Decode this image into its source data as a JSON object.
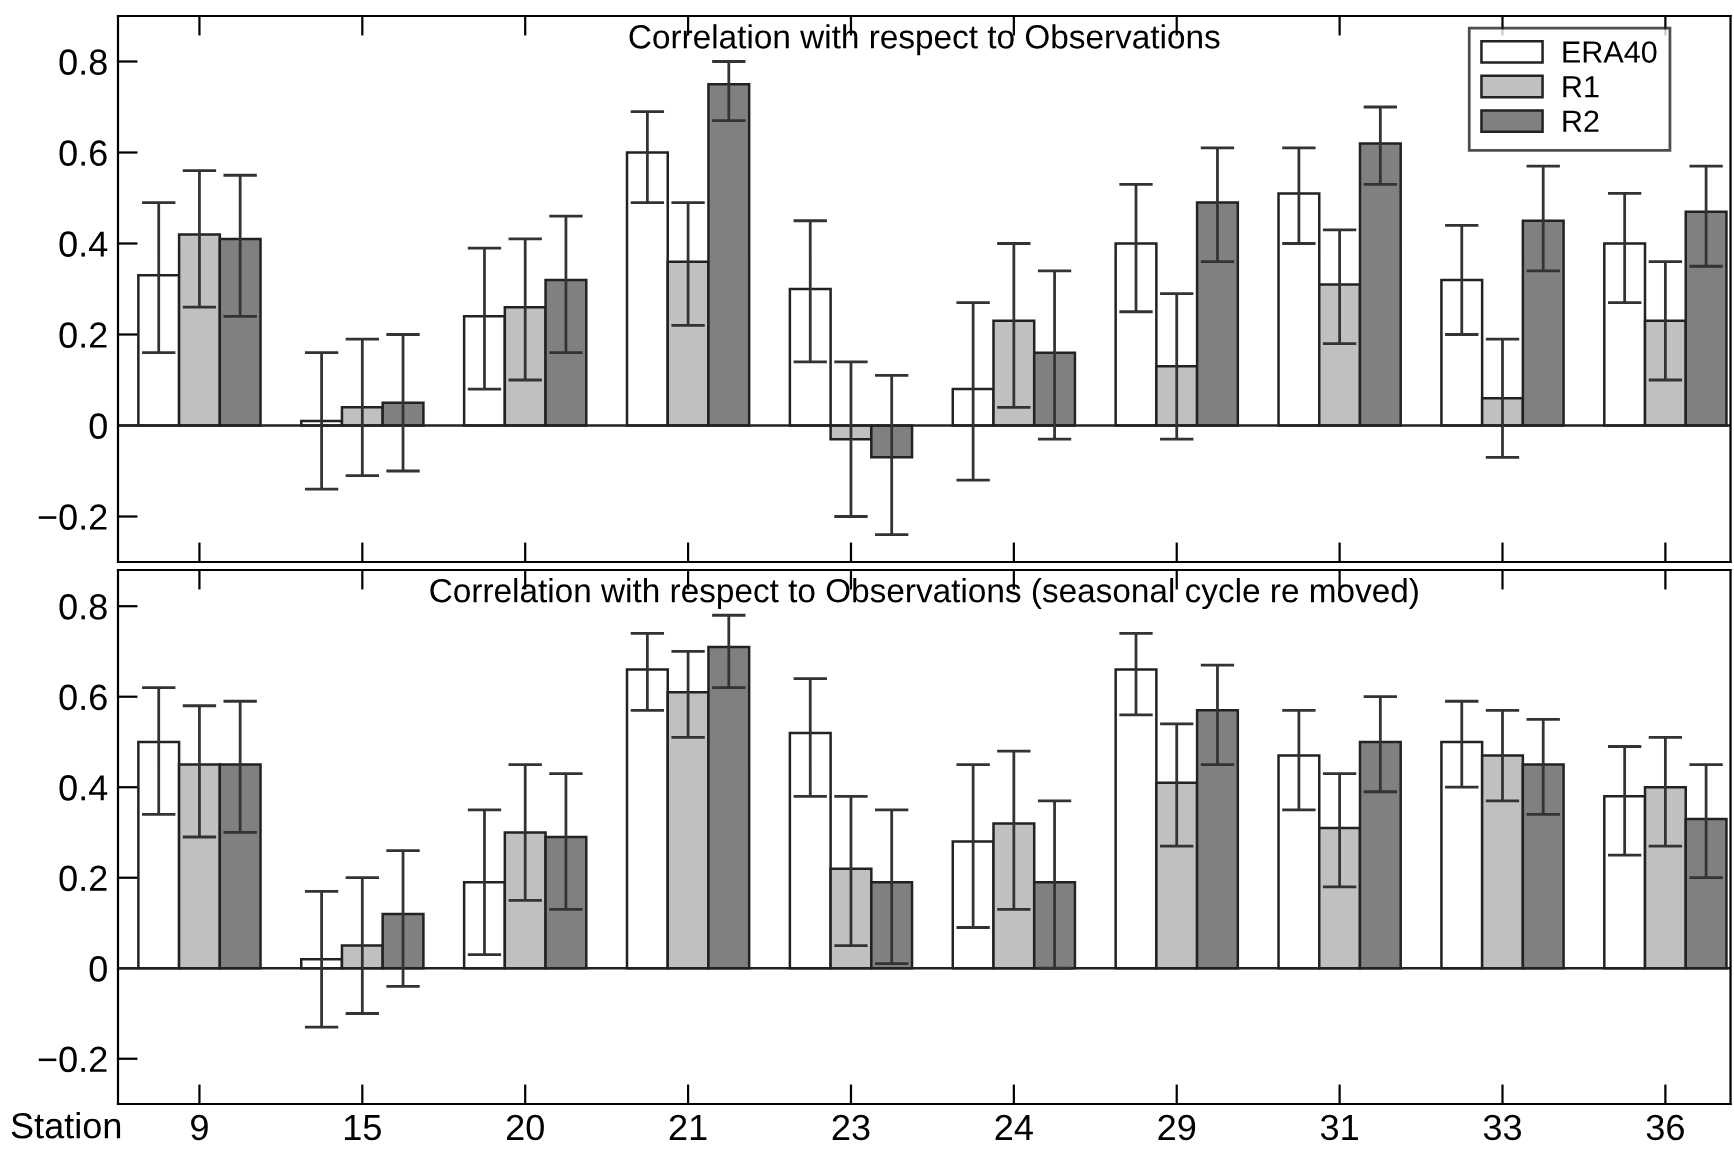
{
  "chart_data": [
    {
      "type": "bar",
      "title": "Correlation with respect to Observations",
      "categories": [
        "9",
        "15",
        "20",
        "21",
        "23",
        "24",
        "29",
        "31",
        "33",
        "36"
      ],
      "ylim": [
        -0.3,
        0.9
      ],
      "yticks": [
        {
          "value": -0.2,
          "label": "−0.2"
        },
        0,
        0.2,
        0.4,
        0.6,
        0.8
      ],
      "legend": "top right",
      "tick_labels": "y",
      "grid": false,
      "ref_lines": [
        {
          "axis": "y",
          "value": 0
        }
      ],
      "series": [
        {
          "name": "ERA40",
          "color": "#ffffff",
          "values": [
            0.33,
            0.01,
            0.24,
            0.6,
            0.3,
            0.08,
            0.4,
            0.51,
            0.32,
            0.4
          ],
          "errors": [
            [
              0.16,
              0.49
            ],
            [
              -0.14,
              0.16
            ],
            [
              0.08,
              0.39
            ],
            [
              0.49,
              0.69
            ],
            [
              0.14,
              0.45
            ],
            [
              -0.12,
              0.27
            ],
            [
              0.25,
              0.53
            ],
            [
              0.4,
              0.61
            ],
            [
              0.2,
              0.44
            ],
            [
              0.27,
              0.51
            ]
          ]
        },
        {
          "name": "R1",
          "color": "#c0c0c0",
          "values": [
            0.42,
            0.04,
            0.26,
            0.36,
            -0.03,
            0.23,
            0.13,
            0.31,
            0.06,
            0.23
          ],
          "errors": [
            [
              0.26,
              0.56
            ],
            [
              -0.11,
              0.19
            ],
            [
              0.1,
              0.41
            ],
            [
              0.22,
              0.49
            ],
            [
              -0.2,
              0.14
            ],
            [
              0.04,
              0.4
            ],
            [
              -0.03,
              0.29
            ],
            [
              0.18,
              0.43
            ],
            [
              -0.07,
              0.19
            ],
            [
              0.1,
              0.36
            ]
          ]
        },
        {
          "name": "R2",
          "color": "#808080",
          "values": [
            0.41,
            0.05,
            0.32,
            0.75,
            -0.07,
            0.16,
            0.49,
            0.62,
            0.45,
            0.47
          ],
          "errors": [
            [
              0.24,
              0.55
            ],
            [
              -0.1,
              0.2
            ],
            [
              0.16,
              0.46
            ],
            [
              0.67,
              0.8
            ],
            [
              -0.24,
              0.11
            ],
            [
              -0.03,
              0.34
            ],
            [
              0.36,
              0.61
            ],
            [
              0.53,
              0.7
            ],
            [
              0.34,
              0.57
            ],
            [
              0.35,
              0.57
            ]
          ]
        }
      ]
    },
    {
      "type": "bar",
      "title": "Correlation with respect to Observations (seasonal cycle re moved)",
      "xlabel": "Station",
      "categories": [
        "9",
        "15",
        "20",
        "21",
        "23",
        "24",
        "29",
        "31",
        "33",
        "36"
      ],
      "ylim": [
        -0.3,
        0.88
      ],
      "yticks": [
        {
          "value": -0.2,
          "label": "−0.2"
        },
        0,
        0.2,
        0.4,
        0.6,
        0.8
      ],
      "grid": false,
      "ref_lines": [
        {
          "axis": "y",
          "value": 0
        }
      ],
      "series": [
        {
          "color": "#ffffff",
          "values": [
            0.5,
            0.02,
            0.19,
            0.66,
            0.52,
            0.28,
            0.66,
            0.47,
            0.5,
            0.38
          ],
          "errors": [
            [
              0.34,
              0.62
            ],
            [
              -0.13,
              0.17
            ],
            [
              0.03,
              0.35
            ],
            [
              0.57,
              0.74
            ],
            [
              0.38,
              0.64
            ],
            [
              0.09,
              0.45
            ],
            [
              0.56,
              0.74
            ],
            [
              0.35,
              0.57
            ],
            [
              0.4,
              0.59
            ],
            [
              0.25,
              0.49
            ]
          ]
        },
        {
          "color": "#c0c0c0",
          "values": [
            0.45,
            0.05,
            0.3,
            0.61,
            0.22,
            0.32,
            0.41,
            0.31,
            0.47,
            0.4
          ],
          "errors": [
            [
              0.29,
              0.58
            ],
            [
              -0.1,
              0.2
            ],
            [
              0.15,
              0.45
            ],
            [
              0.51,
              0.7
            ],
            [
              0.05,
              0.38
            ],
            [
              0.13,
              0.48
            ],
            [
              0.27,
              0.54
            ],
            [
              0.18,
              0.43
            ],
            [
              0.37,
              0.57
            ],
            [
              0.27,
              0.51
            ]
          ]
        },
        {
          "color": "#808080",
          "values": [
            0.45,
            0.12,
            0.29,
            0.71,
            0.19,
            0.19,
            0.57,
            0.5,
            0.45,
            0.33
          ],
          "errors": [
            [
              0.3,
              0.59
            ],
            [
              -0.04,
              0.26
            ],
            [
              0.13,
              0.43
            ],
            [
              0.62,
              0.78
            ],
            [
              0.01,
              0.35
            ],
            [
              0.0,
              0.37
            ],
            [
              0.45,
              0.67
            ],
            [
              0.39,
              0.6
            ],
            [
              0.34,
              0.55
            ],
            [
              0.2,
              0.45
            ]
          ]
        }
      ]
    }
  ]
}
